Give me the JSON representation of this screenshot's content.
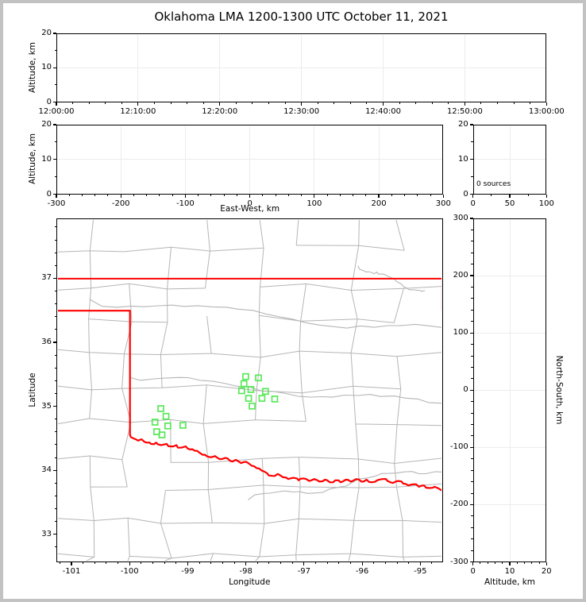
{
  "figure": {
    "title": "Oklahoma LMA 1200-1300 UTC October 11, 2021",
    "outer_border_color": "#c2c2c2",
    "background": "#ffffff",
    "spine_color": "#000000",
    "grid_color": "#ececec",
    "county_line_color": "#b5b5b5",
    "state_border_color": "#ff0000",
    "station_color": "#58e858"
  },
  "chart_data": [
    {
      "type": "scatter",
      "panel": "time-height",
      "ylabel": "Altitude, km",
      "xticks": [
        "12:00:00",
        "12:10:00",
        "12:20:00",
        "12:30:00",
        "12:40:00",
        "12:50:00",
        "13:00:00"
      ],
      "yticks": [
        0,
        10,
        20
      ],
      "xlim": [
        "12:00:00",
        "13:00:00"
      ],
      "ylim": [
        0,
        20
      ],
      "grid": true,
      "points": []
    },
    {
      "type": "scatter",
      "panel": "east-west-height",
      "xlabel": "East-West, km",
      "ylabel": "Altitude, km",
      "xticks": [
        -300,
        -200,
        -100,
        0,
        100,
        200,
        300
      ],
      "yticks": [
        0,
        10,
        20
      ],
      "xlim": [
        -300,
        300
      ],
      "ylim": [
        0,
        20
      ],
      "grid": true,
      "points": []
    },
    {
      "type": "histogram",
      "panel": "altitude-source-count",
      "annotation": "0 sources",
      "xticks": [
        0,
        50,
        100
      ],
      "yticks": [
        0,
        10,
        20
      ],
      "xlim": [
        0,
        100
      ],
      "ylim": [
        0,
        20
      ],
      "points": []
    },
    {
      "type": "scatter",
      "panel": "plan-view-map",
      "xlabel": "Longitude",
      "ylabel": "Latitude",
      "xticks": [
        -101,
        -100,
        -99,
        -98,
        -97,
        -96,
        -95
      ],
      "yticks": [
        33,
        34,
        35,
        36,
        37
      ],
      "xlim": [
        -101.26,
        -94.615
      ],
      "ylim": [
        32.57,
        37.935
      ],
      "grid": false,
      "series": [
        {
          "name": "lma-stations",
          "marker": "open-square",
          "color": "#58e858",
          "points": [
            [
              -99.47,
              34.97
            ],
            [
              -99.38,
              34.85
            ],
            [
              -99.57,
              34.76
            ],
            [
              -99.35,
              34.7
            ],
            [
              -99.09,
              34.71
            ],
            [
              -99.54,
              34.61
            ],
            [
              -99.45,
              34.56
            ],
            [
              -98.01,
              35.47
            ],
            [
              -97.79,
              35.45
            ],
            [
              -98.04,
              35.36
            ],
            [
              -98.08,
              35.25
            ],
            [
              -97.92,
              35.27
            ],
            [
              -97.67,
              35.24
            ],
            [
              -97.96,
              35.13
            ],
            [
              -97.73,
              35.13
            ],
            [
              -97.51,
              35.12
            ],
            [
              -97.9,
              35.01
            ]
          ]
        }
      ]
    },
    {
      "type": "scatter",
      "panel": "north-south-height",
      "xlabel": "Altitude, km",
      "ylabel": "North-South, km",
      "xticks": [
        0,
        10,
        20
      ],
      "yticks": [
        300,
        200,
        100,
        0,
        -100,
        -200,
        -300
      ],
      "xlim": [
        0,
        20
      ],
      "ylim": [
        -300,
        300
      ],
      "grid": true,
      "points": []
    }
  ],
  "map": {
    "state_border": {
      "color": "#ff0000",
      "kansas_oklahoma": [
        [
          -101.26,
          37
        ],
        [
          -94.615,
          37
        ]
      ],
      "oklahoma_missouri": [
        [
          -94.63,
          37
        ],
        [
          -94.63,
          36.5
        ]
      ],
      "texas_panhandle": [
        [
          -101.26,
          36.5
        ],
        [
          -100.0,
          36.5
        ],
        [
          -100.0,
          34.56
        ]
      ],
      "red_river": [
        [
          -100.0,
          34.56
        ],
        [
          -99.93,
          34.5
        ],
        [
          -99.86,
          34.47
        ],
        [
          -99.8,
          34.49
        ],
        [
          -99.72,
          34.44
        ],
        [
          -99.64,
          34.42
        ],
        [
          -99.55,
          34.44
        ],
        [
          -99.46,
          34.4
        ],
        [
          -99.37,
          34.42
        ],
        [
          -99.28,
          34.38
        ],
        [
          -99.2,
          34.4
        ],
        [
          -99.12,
          34.36
        ],
        [
          -99.04,
          34.38
        ],
        [
          -98.96,
          34.33
        ],
        [
          -98.88,
          34.31
        ],
        [
          -98.8,
          34.28
        ],
        [
          -98.71,
          34.25
        ],
        [
          -98.62,
          34.21
        ],
        [
          -98.54,
          34.23
        ],
        [
          -98.45,
          34.18
        ],
        [
          -98.36,
          34.2
        ],
        [
          -98.27,
          34.15
        ],
        [
          -98.18,
          34.17
        ],
        [
          -98.09,
          34.12
        ],
        [
          -98.0,
          34.14
        ],
        [
          -97.91,
          34.08
        ],
        [
          -97.82,
          34.04
        ],
        [
          -97.73,
          34.0
        ],
        [
          -97.64,
          33.96
        ],
        [
          -97.55,
          33.92
        ],
        [
          -97.46,
          33.95
        ],
        [
          -97.37,
          33.9
        ],
        [
          -97.28,
          33.87
        ],
        [
          -97.19,
          33.89
        ],
        [
          -97.1,
          33.85
        ],
        [
          -97.01,
          33.88
        ],
        [
          -96.92,
          33.84
        ],
        [
          -96.83,
          33.87
        ],
        [
          -96.74,
          33.83
        ],
        [
          -96.65,
          33.86
        ],
        [
          -96.56,
          33.82
        ],
        [
          -96.47,
          33.85
        ],
        [
          -96.38,
          33.82
        ],
        [
          -96.29,
          33.86
        ],
        [
          -96.2,
          33.83
        ],
        [
          -96.11,
          33.87
        ],
        [
          -96.02,
          33.83
        ],
        [
          -95.93,
          33.86
        ],
        [
          -95.84,
          33.82
        ],
        [
          -95.75,
          33.85
        ],
        [
          -95.66,
          33.87
        ],
        [
          -95.57,
          33.84
        ],
        [
          -95.48,
          33.81
        ],
        [
          -95.39,
          33.84
        ],
        [
          -95.3,
          33.8
        ],
        [
          -95.21,
          33.77
        ],
        [
          -95.12,
          33.79
        ],
        [
          -95.03,
          33.75
        ],
        [
          -94.94,
          33.77
        ],
        [
          -94.85,
          33.73
        ],
        [
          -94.76,
          33.75
        ],
        [
          -94.615,
          33.68
        ]
      ]
    }
  }
}
